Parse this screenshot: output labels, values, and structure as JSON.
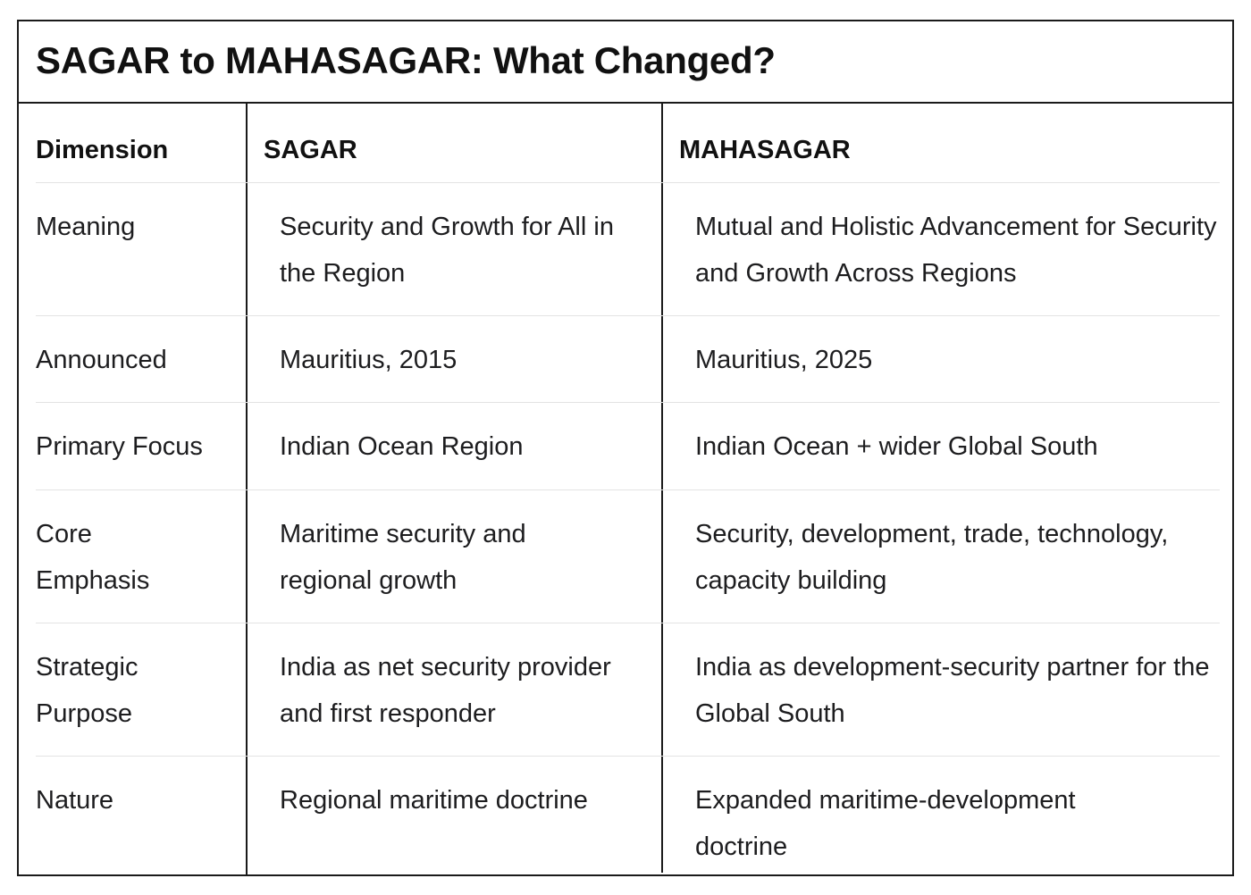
{
  "title": "SAGAR to MAHASAGAR: What Changed?",
  "table": {
    "headers": [
      "Dimension",
      "SAGAR",
      "MAHASAGAR"
    ],
    "rows": [
      {
        "dimension": "Meaning",
        "sagar": "Security and Growth for All in the Region",
        "mahasagar": "Mutual and Holistic Advancement for Security and Growth Across Regions"
      },
      {
        "dimension": "Announced",
        "sagar": "Mauritius, 2015",
        "mahasagar": "Mauritius, 2025"
      },
      {
        "dimension": "Primary Focus",
        "sagar": "Indian Ocean Region",
        "mahasagar": "Indian Ocean + wider Global South"
      },
      {
        "dimension": "Core Emphasis",
        "sagar": "Maritime security and regional growth",
        "mahasagar": "Security, development, trade, technology, capacity building"
      },
      {
        "dimension": "Strategic Purpose",
        "sagar": "India as net security provider and first responder",
        "mahasagar": "India as development-security partner for the Global South"
      },
      {
        "dimension": "Nature",
        "sagar": "Regional maritime doctrine",
        "mahasagar": "Expanded maritime-development doctrine"
      }
    ]
  }
}
